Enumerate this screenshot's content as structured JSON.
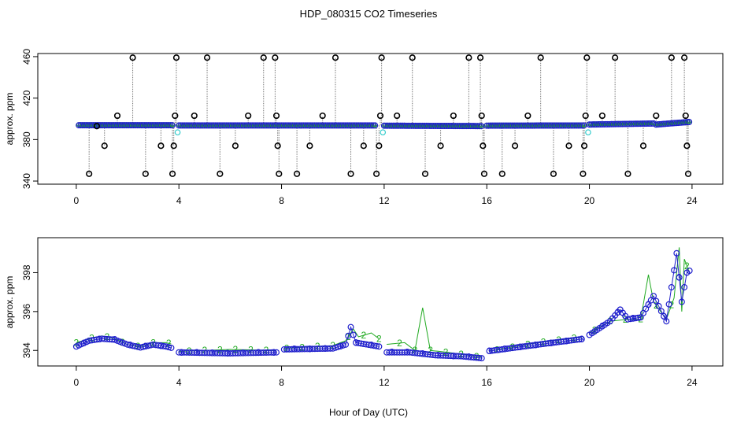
{
  "title": "HDP_080315  CO2 Timeseries",
  "xlabel": "Hour of Day (UTC)",
  "colors": {
    "background": "#ffffff",
    "axis": "#000000",
    "black_pts": "#000000",
    "cyan_pts": "#33cccc",
    "series2": "#22aa22",
    "series3": "#1f1fcc",
    "spike_line": "#777777"
  },
  "chart_data": [
    {
      "type": "scatter",
      "title": "HDP_080315  CO2 Timeseries",
      "ylabel": "approx. ppm",
      "xlim": [
        -1.5,
        25.2
      ],
      "ylim": [
        337,
        463
      ],
      "xticks": [
        0,
        4,
        8,
        12,
        16,
        20,
        24
      ],
      "yticks": [
        340,
        380,
        420,
        460
      ],
      "x_range": [
        0.1,
        23.9
      ],
      "step_hours": 0.1,
      "baseline_segments": [
        {
          "x0": 0.1,
          "x1": 3.8,
          "y0": 393.8,
          "y1": 393.8
        },
        {
          "x0": 4.0,
          "x1": 11.7,
          "y0": 393.6,
          "y1": 393.6
        },
        {
          "x0": 12.0,
          "x1": 15.8,
          "y0": 393.4,
          "y1": 393.0
        },
        {
          "x0": 16.0,
          "x1": 19.8,
          "y0": 393.4,
          "y1": 393.6
        },
        {
          "x0": 20.0,
          "x1": 22.5,
          "y0": 394.5,
          "y1": 395.5
        },
        {
          "x0": 22.6,
          "x1": 23.9,
          "y0": 394.5,
          "y1": 397.0
        }
      ],
      "cyan_points": [
        {
          "x": 3.95,
          "y": 387
        },
        {
          "x": 11.95,
          "y": 387
        },
        {
          "x": 19.95,
          "y": 387
        }
      ],
      "black_points": [
        {
          "x": 0.5,
          "y": 347
        },
        {
          "x": 0.8,
          "y": 393
        },
        {
          "x": 1.1,
          "y": 374
        },
        {
          "x": 1.6,
          "y": 403
        },
        {
          "x": 2.2,
          "y": 459
        },
        {
          "x": 2.7,
          "y": 347
        },
        {
          "x": 3.3,
          "y": 374
        },
        {
          "x": 3.75,
          "y": 347
        },
        {
          "x": 3.8,
          "y": 374
        },
        {
          "x": 3.85,
          "y": 403
        },
        {
          "x": 3.9,
          "y": 459
        },
        {
          "x": 4.6,
          "y": 403
        },
        {
          "x": 5.1,
          "y": 459
        },
        {
          "x": 5.6,
          "y": 347
        },
        {
          "x": 6.2,
          "y": 374
        },
        {
          "x": 6.7,
          "y": 403
        },
        {
          "x": 7.3,
          "y": 459
        },
        {
          "x": 7.75,
          "y": 459
        },
        {
          "x": 7.8,
          "y": 403
        },
        {
          "x": 7.85,
          "y": 374
        },
        {
          "x": 7.9,
          "y": 347
        },
        {
          "x": 8.6,
          "y": 347
        },
        {
          "x": 9.1,
          "y": 374
        },
        {
          "x": 9.6,
          "y": 403
        },
        {
          "x": 10.1,
          "y": 459
        },
        {
          "x": 10.7,
          "y": 347
        },
        {
          "x": 11.2,
          "y": 374
        },
        {
          "x": 11.7,
          "y": 347
        },
        {
          "x": 11.8,
          "y": 374
        },
        {
          "x": 11.85,
          "y": 403
        },
        {
          "x": 11.9,
          "y": 459
        },
        {
          "x": 12.5,
          "y": 403
        },
        {
          "x": 13.1,
          "y": 459
        },
        {
          "x": 13.6,
          "y": 347
        },
        {
          "x": 14.2,
          "y": 374
        },
        {
          "x": 14.7,
          "y": 403
        },
        {
          "x": 15.3,
          "y": 459
        },
        {
          "x": 15.75,
          "y": 459
        },
        {
          "x": 15.8,
          "y": 403
        },
        {
          "x": 15.85,
          "y": 374
        },
        {
          "x": 15.9,
          "y": 347
        },
        {
          "x": 16.6,
          "y": 347
        },
        {
          "x": 17.1,
          "y": 374
        },
        {
          "x": 17.6,
          "y": 403
        },
        {
          "x": 18.1,
          "y": 459
        },
        {
          "x": 18.6,
          "y": 347
        },
        {
          "x": 19.2,
          "y": 374
        },
        {
          "x": 19.75,
          "y": 347
        },
        {
          "x": 19.8,
          "y": 374
        },
        {
          "x": 19.85,
          "y": 403
        },
        {
          "x": 19.9,
          "y": 459
        },
        {
          "x": 20.5,
          "y": 403
        },
        {
          "x": 21.0,
          "y": 459
        },
        {
          "x": 21.5,
          "y": 347
        },
        {
          "x": 22.1,
          "y": 374
        },
        {
          "x": 22.6,
          "y": 403
        },
        {
          "x": 23.2,
          "y": 459
        },
        {
          "x": 23.7,
          "y": 459
        },
        {
          "x": 23.75,
          "y": 403
        },
        {
          "x": 23.8,
          "y": 374
        },
        {
          "x": 23.85,
          "y": 347
        }
      ]
    },
    {
      "type": "line",
      "ylabel": "approx. ppm",
      "xlim": [
        -1.5,
        25.2
      ],
      "ylim": [
        393.2,
        399.8
      ],
      "xticks": [
        0,
        4,
        8,
        12,
        16,
        20,
        24
      ],
      "yticks": [
        394,
        396,
        398
      ],
      "gaps_after": [
        3.8,
        7.8,
        11.8,
        15.8,
        19.8
      ],
      "series": [
        {
          "name": "2",
          "marker": "2",
          "knots": [
            {
              "x": 0.0,
              "y": 394.4
            },
            {
              "x": 0.5,
              "y": 394.6
            },
            {
              "x": 1.0,
              "y": 394.75
            },
            {
              "x": 1.5,
              "y": 394.6
            },
            {
              "x": 2.0,
              "y": 394.3
            },
            {
              "x": 2.5,
              "y": 394.2
            },
            {
              "x": 3.0,
              "y": 394.4
            },
            {
              "x": 3.5,
              "y": 394.4
            },
            {
              "x": 3.8,
              "y": 394.3
            },
            {
              "x": 4.0,
              "y": 393.95
            },
            {
              "x": 6.0,
              "y": 394.05
            },
            {
              "x": 7.8,
              "y": 394.0
            },
            {
              "x": 8.0,
              "y": 394.1
            },
            {
              "x": 10.0,
              "y": 394.25
            },
            {
              "x": 10.5,
              "y": 394.5
            },
            {
              "x": 10.8,
              "y": 395.1
            },
            {
              "x": 11.0,
              "y": 394.7
            },
            {
              "x": 11.5,
              "y": 394.9
            },
            {
              "x": 11.8,
              "y": 394.6
            },
            {
              "x": 12.0,
              "y": 394.3
            },
            {
              "x": 12.8,
              "y": 394.4
            },
            {
              "x": 13.2,
              "y": 394.0
            },
            {
              "x": 13.5,
              "y": 396.2
            },
            {
              "x": 13.8,
              "y": 394.0
            },
            {
              "x": 14.5,
              "y": 393.9
            },
            {
              "x": 15.8,
              "y": 393.65
            },
            {
              "x": 16.0,
              "y": 393.95
            },
            {
              "x": 18.0,
              "y": 394.4
            },
            {
              "x": 19.8,
              "y": 394.7
            },
            {
              "x": 20.0,
              "y": 394.9
            },
            {
              "x": 20.8,
              "y": 395.5
            },
            {
              "x": 21.5,
              "y": 395.6
            },
            {
              "x": 22.0,
              "y": 395.6
            },
            {
              "x": 22.3,
              "y": 397.9
            },
            {
              "x": 22.5,
              "y": 396.5
            },
            {
              "x": 23.0,
              "y": 395.6
            },
            {
              "x": 23.3,
              "y": 396.7
            },
            {
              "x": 23.5,
              "y": 399.3
            },
            {
              "x": 23.6,
              "y": 396.0
            },
            {
              "x": 23.7,
              "y": 398.7
            },
            {
              "x": 23.9,
              "y": 398.0
            }
          ]
        },
        {
          "name": "3",
          "marker": "3",
          "knots": [
            {
              "x": 0.0,
              "y": 394.2
            },
            {
              "x": 0.5,
              "y": 394.5
            },
            {
              "x": 1.0,
              "y": 394.6
            },
            {
              "x": 1.5,
              "y": 394.55
            },
            {
              "x": 2.0,
              "y": 394.3
            },
            {
              "x": 2.5,
              "y": 394.15
            },
            {
              "x": 3.0,
              "y": 394.3
            },
            {
              "x": 3.5,
              "y": 394.2
            },
            {
              "x": 3.8,
              "y": 394.1
            },
            {
              "x": 4.0,
              "y": 393.9
            },
            {
              "x": 6.0,
              "y": 393.85
            },
            {
              "x": 7.8,
              "y": 393.9
            },
            {
              "x": 8.0,
              "y": 394.05
            },
            {
              "x": 10.0,
              "y": 394.1
            },
            {
              "x": 10.5,
              "y": 394.3
            },
            {
              "x": 10.7,
              "y": 395.2
            },
            {
              "x": 10.9,
              "y": 394.4
            },
            {
              "x": 11.8,
              "y": 394.2
            },
            {
              "x": 12.0,
              "y": 393.9
            },
            {
              "x": 13.0,
              "y": 393.9
            },
            {
              "x": 14.0,
              "y": 393.75
            },
            {
              "x": 15.0,
              "y": 393.7
            },
            {
              "x": 15.8,
              "y": 393.6
            },
            {
              "x": 16.0,
              "y": 393.95
            },
            {
              "x": 18.0,
              "y": 394.3
            },
            {
              "x": 19.8,
              "y": 394.6
            },
            {
              "x": 20.0,
              "y": 394.8
            },
            {
              "x": 20.8,
              "y": 395.5
            },
            {
              "x": 21.2,
              "y": 396.1
            },
            {
              "x": 21.5,
              "y": 395.6
            },
            {
              "x": 22.0,
              "y": 395.7
            },
            {
              "x": 22.5,
              "y": 396.8
            },
            {
              "x": 23.0,
              "y": 395.5
            },
            {
              "x": 23.4,
              "y": 399.0
            },
            {
              "x": 23.6,
              "y": 396.5
            },
            {
              "x": 23.8,
              "y": 398.0
            },
            {
              "x": 23.9,
              "y": 398.1
            }
          ]
        }
      ]
    }
  ]
}
